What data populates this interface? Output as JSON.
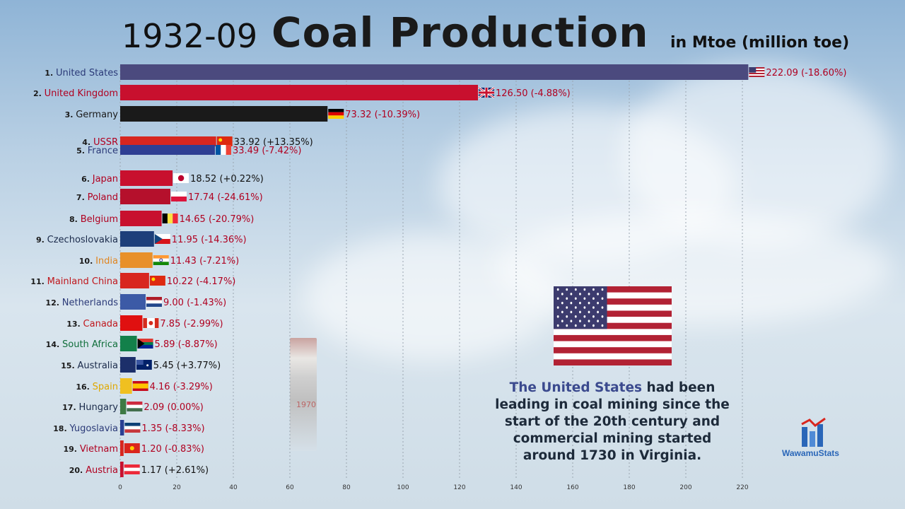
{
  "header": {
    "date": "1932-09",
    "title": "Coal Production",
    "unit": "in Mtoe (million toe)"
  },
  "caption": {
    "highlight": "The United States",
    "rest": " had been leading in coal mining since the start of the 20th century and commercial mining started around 1730 in Virginia."
  },
  "logo": {
    "text": "WawamuStats"
  },
  "chimney": {
    "label": "1970"
  },
  "colors": {
    "accent_caption": "#3b4a8e",
    "logo": "#2a66b8"
  },
  "chart_data": {
    "type": "bar",
    "orientation": "horizontal",
    "xlim": [
      0,
      230
    ],
    "x_ticks": [
      0,
      20,
      40,
      60,
      80,
      100,
      120,
      140,
      160,
      180,
      200,
      220
    ],
    "grid": "vertical-dotted",
    "bars": [
      {
        "rank": "1.",
        "name": "United States",
        "value": 222.09,
        "change": "(-18.60%)",
        "label": "222.09",
        "color": "#4b4a7e",
        "name_color": "#2b3a78",
        "flag": "us"
      },
      {
        "rank": "2.",
        "name": "United Kingdom",
        "value": 126.5,
        "change": "(-4.88%)",
        "label": "126.50",
        "color": "#c8102e",
        "name_color": "#b00020",
        "flag": "uk"
      },
      {
        "rank": "3.",
        "name": "Germany",
        "value": 73.32,
        "change": "(-10.39%)",
        "label": "73.32",
        "color": "#1a1a1a",
        "name_color": "#1a1a1a",
        "flag": "de",
        "value_color": "#b00020"
      },
      {
        "rank": "4.",
        "name": "USSR",
        "value": 33.92,
        "change": "(+13.35%)",
        "label": "33.92",
        "color": "#d8261f",
        "name_color": "#b00020",
        "flag": "cn",
        "value_color": "#111111"
      },
      {
        "rank": "5.",
        "name": "France",
        "value": 33.49,
        "change": "(-7.42%)",
        "label": "33.49",
        "color": "#2f3f93",
        "name_color": "#2b3a78",
        "flag": "fr",
        "value_color": "#b00020"
      },
      {
        "rank": "6.",
        "name": "Japan",
        "value": 18.52,
        "change": "(+0.22%)",
        "label": "18.52",
        "color": "#c8102e",
        "name_color": "#b00020",
        "flag": "jp",
        "value_color": "#111111"
      },
      {
        "rank": "7.",
        "name": "Poland",
        "value": 17.74,
        "change": "(-24.61%)",
        "label": "17.74",
        "color": "#b5102c",
        "name_color": "#b00020",
        "flag": "pl",
        "value_color": "#b00020"
      },
      {
        "rank": "8.",
        "name": "Belgium",
        "value": 14.65,
        "change": "(-20.79%)",
        "label": "14.65",
        "color": "#c8102e",
        "name_color": "#b00020",
        "flag": "be",
        "value_color": "#b00020"
      },
      {
        "rank": "9.",
        "name": "Czechoslovakia",
        "value": 11.95,
        "change": "(-14.36%)",
        "label": "11.95",
        "color": "#1d3f7a",
        "name_color": "#1a2a4a",
        "flag": "cz",
        "value_color": "#b00020"
      },
      {
        "rank": "10.",
        "name": "India",
        "value": 11.43,
        "change": "(-7.21%)",
        "label": "11.43",
        "color": "#e8902a",
        "name_color": "#e0851f",
        "flag": "in",
        "value_color": "#b00020"
      },
      {
        "rank": "11.",
        "name": "Mainland China",
        "value": 10.22,
        "change": "(-4.17%)",
        "label": "10.22",
        "color": "#d8261f",
        "name_color": "#c0161b",
        "flag": "cn",
        "value_color": "#b00020"
      },
      {
        "rank": "12.",
        "name": "Netherlands",
        "value": 9.0,
        "change": "(-1.43%)",
        "label": "9.00",
        "color": "#3c5aa6",
        "name_color": "#2b3a78",
        "flag": "nl",
        "value_color": "#b00020"
      },
      {
        "rank": "13.",
        "name": "Canada",
        "value": 7.85,
        "change": "(-2.99%)",
        "label": "7.85",
        "color": "#e01010",
        "name_color": "#c0161b",
        "flag": "ca",
        "value_color": "#b00020"
      },
      {
        "rank": "14.",
        "name": "South Africa",
        "value": 5.89,
        "change": "(-8.87%)",
        "label": "5.89",
        "color": "#12804a",
        "name_color": "#0f6e3a",
        "flag": "za",
        "value_color": "#b00020"
      },
      {
        "rank": "15.",
        "name": "Australia",
        "value": 5.45,
        "change": "(+3.77%)",
        "label": "5.45",
        "color": "#1c2f6a",
        "name_color": "#1a2a4a",
        "flag": "au",
        "value_color": "#111111"
      },
      {
        "rank": "16.",
        "name": "Spain",
        "value": 4.16,
        "change": "(-3.29%)",
        "label": "4.16",
        "color": "#f0c020",
        "name_color": "#e0a800",
        "flag": "es",
        "value_color": "#b00020"
      },
      {
        "rank": "17.",
        "name": "Hungary",
        "value": 2.09,
        "change": "(0.00%)",
        "label": "2.09",
        "color": "#3e7a44",
        "name_color": "#1a2a4a",
        "flag": "hu",
        "value_color": "#b00020"
      },
      {
        "rank": "18.",
        "name": "Yugoslavia",
        "value": 1.35,
        "change": "(-8.33%)",
        "label": "1.35",
        "color": "#2a3f93",
        "name_color": "#2b3a78",
        "flag": "yu",
        "value_color": "#b00020"
      },
      {
        "rank": "19.",
        "name": "Vietnam",
        "value": 1.2,
        "change": "(-0.83%)",
        "label": "1.20",
        "color": "#d8261f",
        "name_color": "#b00020",
        "flag": "vn",
        "value_color": "#b00020"
      },
      {
        "rank": "20.",
        "name": "Austria",
        "value": 1.17,
        "change": "(+2.61%)",
        "label": "1.17",
        "color": "#c8102e",
        "name_color": "#b00020",
        "flag": "at",
        "value_color": "#111111"
      }
    ]
  }
}
